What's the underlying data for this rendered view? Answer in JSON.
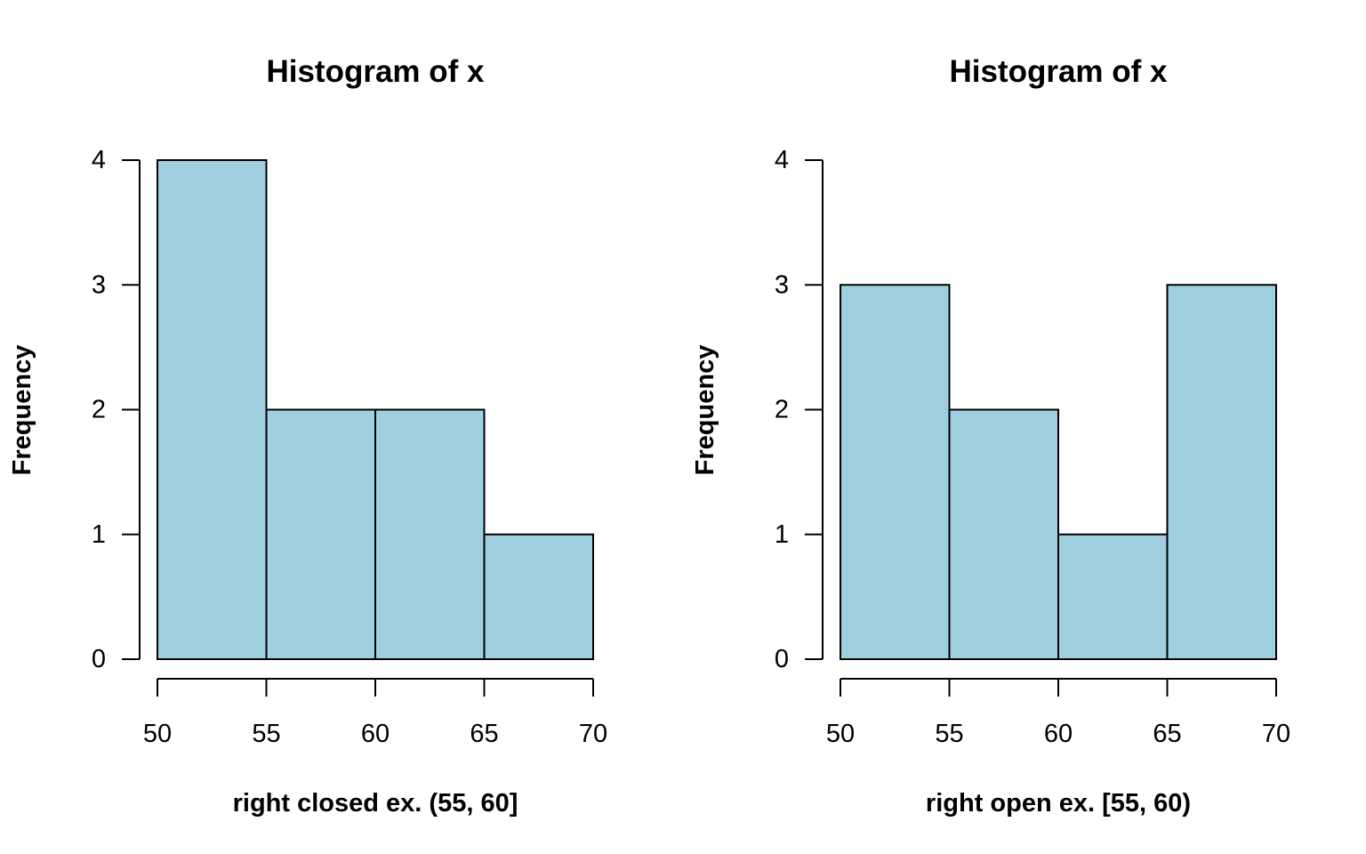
{
  "chart_data": [
    {
      "type": "bar",
      "title": "Histogram of x",
      "xlabel": "right closed ex. (55, 60]",
      "ylabel": "Frequency",
      "bins": [
        [
          50,
          55
        ],
        [
          55,
          60
        ],
        [
          60,
          65
        ],
        [
          65,
          70
        ]
      ],
      "values": [
        4,
        2,
        2,
        1
      ],
      "x_ticks": [
        50,
        55,
        60,
        65,
        70
      ],
      "y_ticks": [
        0,
        1,
        2,
        3,
        4
      ],
      "xlim": [
        50,
        70
      ],
      "ylim": [
        0,
        4
      ],
      "bar_color": "#a0cfe0",
      "grid": false
    },
    {
      "type": "bar",
      "title": "Histogram of x",
      "xlabel": "right open ex. [55, 60)",
      "ylabel": "Frequency",
      "bins": [
        [
          50,
          55
        ],
        [
          55,
          60
        ],
        [
          60,
          65
        ],
        [
          65,
          70
        ]
      ],
      "values": [
        3,
        2,
        1,
        3
      ],
      "x_ticks": [
        50,
        55,
        60,
        65,
        70
      ],
      "y_ticks": [
        0,
        1,
        2,
        3,
        4
      ],
      "xlim": [
        50,
        70
      ],
      "ylim": [
        0,
        4
      ],
      "bar_color": "#a0cfe0",
      "grid": false
    }
  ]
}
